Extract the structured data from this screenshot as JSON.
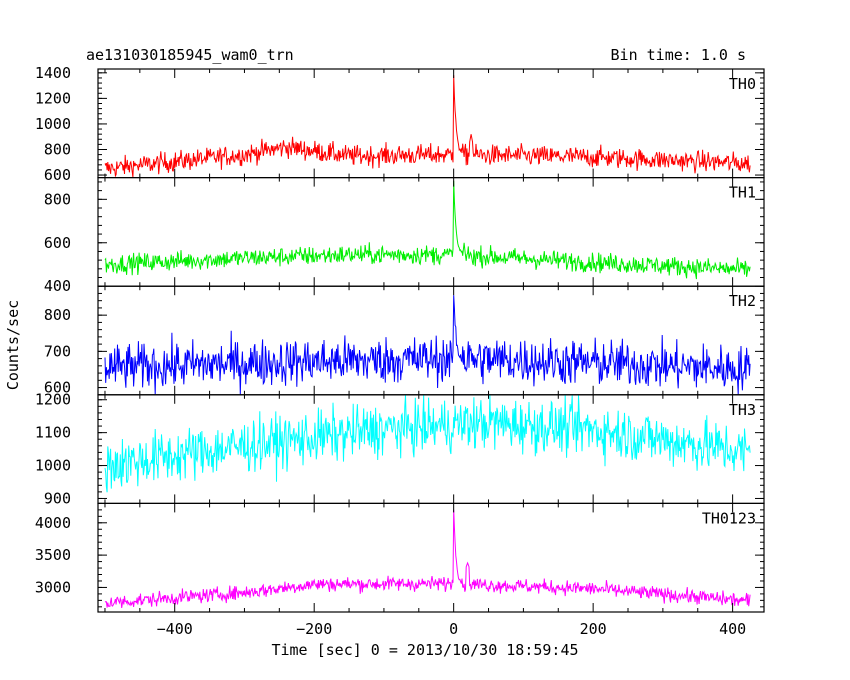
{
  "chart_data": {
    "type": "line",
    "title": "ae131030185945_wam0_trn",
    "annotation": "Bin time: 1.0 s",
    "xlabel": "Time [sec] 0 = 2013/10/30 18:59:45",
    "ylabel": "Counts/sec",
    "xlim": [
      -510,
      445
    ],
    "xticks": [
      -400,
      -200,
      0,
      200,
      400
    ],
    "xtick_labels": [
      "−400",
      "−200",
      "0",
      "200",
      "400"
    ],
    "x_range": [
      -500,
      425
    ],
    "x_step": 1,
    "panels": [
      {
        "name": "TH0",
        "color": "#ff0000",
        "ylim": [
          580,
          1430
        ],
        "yticks": [
          600,
          800,
          1000,
          1200,
          1400
        ],
        "trend": [
          [
            -500,
            650
          ],
          [
            -300,
            760
          ],
          [
            -240,
            820
          ],
          [
            -150,
            750
          ],
          [
            0,
            760
          ],
          [
            200,
            740
          ],
          [
            425,
            690
          ]
        ],
        "noise": 40,
        "spike_peak": 1400,
        "spike_after": [
          [
            25,
            920
          ]
        ]
      },
      {
        "name": "TH1",
        "color": "#00ee00",
        "ylim": [
          400,
          900
        ],
        "yticks": [
          400,
          600,
          800
        ],
        "trend": [
          [
            -500,
            500
          ],
          [
            -300,
            530
          ],
          [
            -150,
            545
          ],
          [
            0,
            545
          ],
          [
            200,
            510
          ],
          [
            425,
            475
          ]
        ],
        "noise": 22,
        "spike_peak": 880,
        "spike_after": [
          [
            15,
            600
          ]
        ]
      },
      {
        "name": "TH2",
        "color": "#0000ff",
        "ylim": [
          580,
          880
        ],
        "yticks": [
          600,
          700,
          800
        ],
        "trend": [
          [
            -500,
            655
          ],
          [
            -250,
            670
          ],
          [
            0,
            680
          ],
          [
            250,
            665
          ],
          [
            425,
            650
          ]
        ],
        "noise": 32,
        "spike_peak": 855,
        "spike_after": []
      },
      {
        "name": "TH3",
        "color": "#00ffff",
        "ylim": [
          885,
          1215
        ],
        "yticks": [
          900,
          1000,
          1100,
          1200
        ],
        "trend": [
          [
            -500,
            1000
          ],
          [
            -300,
            1060
          ],
          [
            -100,
            1110
          ],
          [
            50,
            1130
          ],
          [
            200,
            1110
          ],
          [
            425,
            1040
          ]
        ],
        "noise": 40,
        "spike_peak": null,
        "spike_after": []
      },
      {
        "name": "TH0123",
        "color": "#ff00ff",
        "ylim": [
          2620,
          4300
        ],
        "yticks": [
          3000,
          3500,
          4000
        ],
        "trend": [
          [
            -500,
            2760
          ],
          [
            -300,
            2920
          ],
          [
            -200,
            3050
          ],
          [
            0,
            3060
          ],
          [
            200,
            2980
          ],
          [
            425,
            2790
          ]
        ],
        "noise": 55,
        "spike_peak": 4250,
        "spike_after": [
          [
            20,
            3380
          ]
        ]
      }
    ]
  }
}
